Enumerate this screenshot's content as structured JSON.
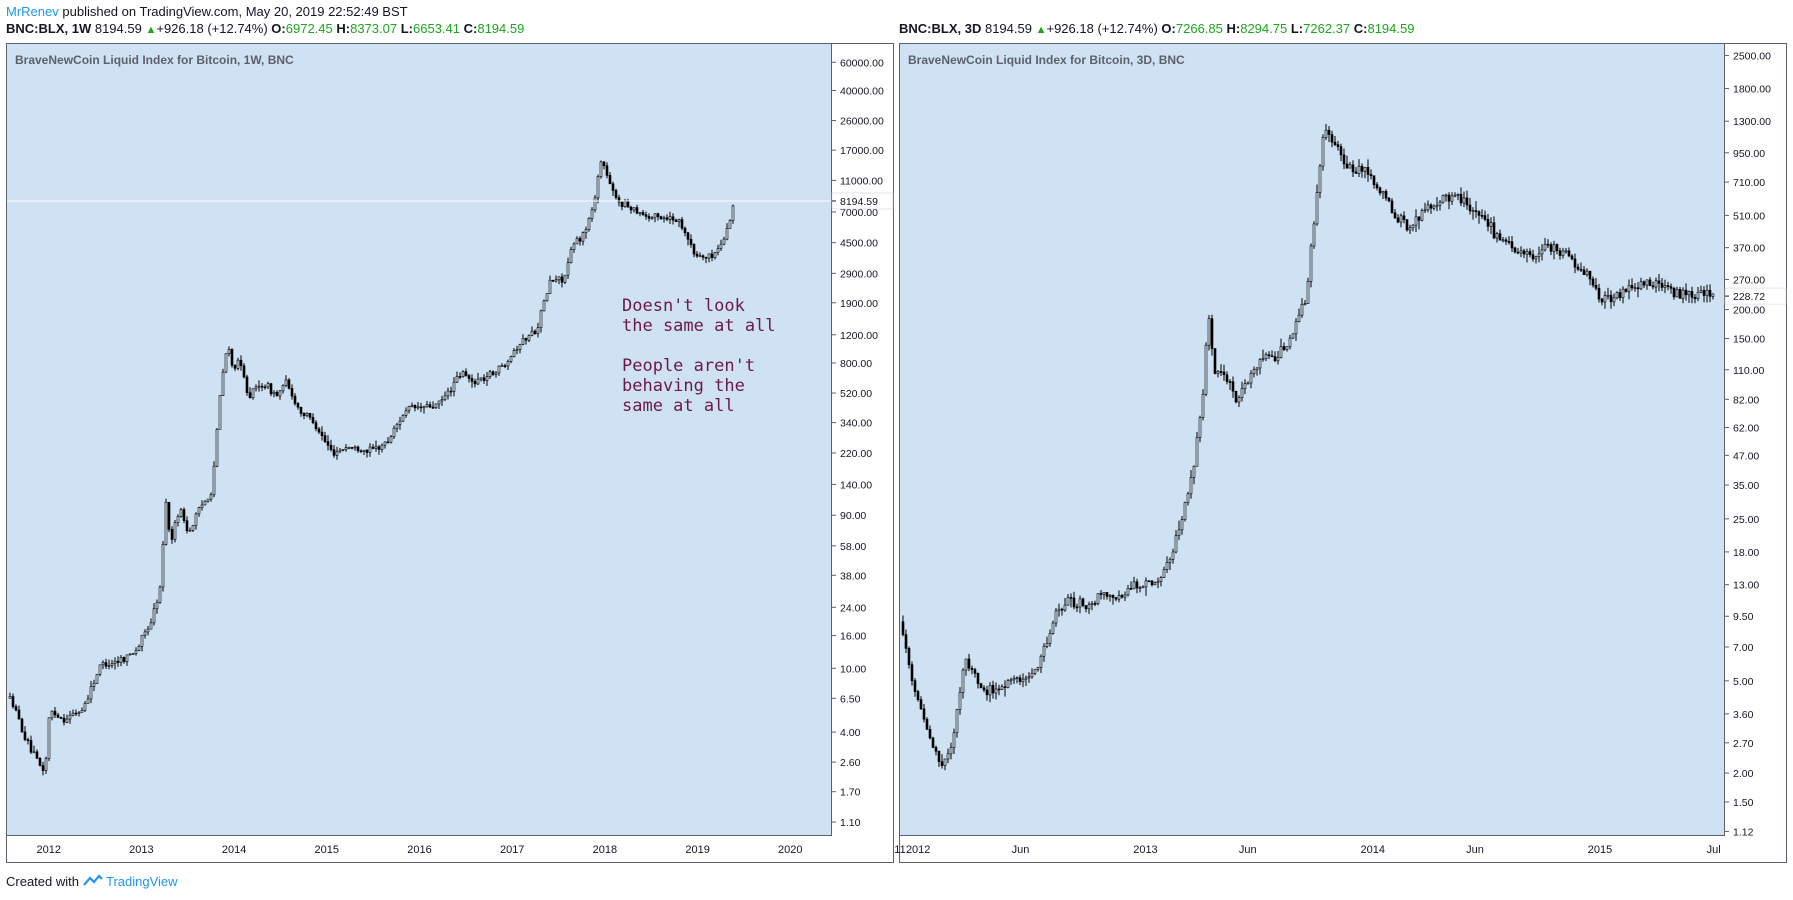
{
  "header": {
    "author": "MrRenev",
    "published": "published on TradingView.com, May 20, 2019 22:52:49 BST"
  },
  "colors": {
    "plot_bg": "#cfe2f3",
    "candle": "#000000",
    "up": "#1ea51e",
    "brand": "#2196f3",
    "annotation": "#6b1947"
  },
  "left": {
    "ohlc": {
      "symbol": "BNC:BLX, 1W",
      "last": "8194.59",
      "change": "+926.18 (+12.74%)",
      "o_label": "O:",
      "o": "6972.45",
      "h_label": "H:",
      "h": "8373.07",
      "l_label": "L:",
      "l": "6653.41",
      "c_label": "C:",
      "c": "8194.59"
    },
    "title": "BraveNewCoin Liquid Index for Bitcoin, 1W, BNC",
    "price_tag": "8194.59",
    "annotation": "Doesn't look\nthe same at all\n\nPeople aren't\nbehaving the\nsame at all"
  },
  "right": {
    "ohlc": {
      "symbol": "BNC:BLX, 3D",
      "last": "8194.59",
      "change": "+926.18 (+12.74%)",
      "o_label": "O:",
      "o": "7266.85",
      "h_label": "H:",
      "h": "8294.75",
      "l_label": "L:",
      "l": "7262.37",
      "c_label": "C:",
      "c": "8194.59"
    },
    "title": "BraveNewCoin Liquid Index for Bitcoin, 3D, BNC",
    "price_tag": "228.72"
  },
  "footer": {
    "created_with": "Created with",
    "brand": "TradingView"
  },
  "chart_data": [
    {
      "type": "line",
      "title": "BraveNewCoin Liquid Index for Bitcoin, 1W, BNC",
      "scale": "log",
      "yticks": [
        "60000.00",
        "40000.00",
        "26000.00",
        "17000.00",
        "11000.00",
        "7000.00",
        "4500.00",
        "2900.00",
        "1900.00",
        "1200.00",
        "800.00",
        "520.00",
        "340.00",
        "220.00",
        "140.00",
        "90.00",
        "58.00",
        "38.00",
        "24.00",
        "16.00",
        "10.00",
        "6.50",
        "4.00",
        "2.60",
        "1.70",
        "1.10"
      ],
      "xticks": [
        "2012",
        "2013",
        "2014",
        "2015",
        "2016",
        "2017",
        "2018",
        "2019",
        "2020"
      ],
      "xrange": [
        2011.55,
        2020.45
      ],
      "ylim": [
        0.9,
        78000
      ],
      "last_value": 8194.59,
      "series": [
        {
          "x": [
            2011.58,
            2011.75,
            2011.88,
            2011.95,
            2012.0,
            2012.15,
            2012.35,
            2012.55,
            2012.7,
            2012.85,
            2012.95,
            2013.1,
            2013.2,
            2013.25,
            2013.3,
            2013.4,
            2013.5,
            2013.6,
            2013.75,
            2013.85,
            2013.92,
            2013.97,
            2014.05,
            2014.15,
            2014.3,
            2014.45,
            2014.55,
            2014.7,
            2014.85,
            2014.95,
            2015.05,
            2015.2,
            2015.4,
            2015.5,
            2015.65,
            2015.8,
            2015.9,
            2016.0,
            2016.2,
            2016.45,
            2016.55,
            2016.7,
            2016.9,
            2017.0,
            2017.1,
            2017.25,
            2017.4,
            2017.55,
            2017.65,
            2017.75,
            2017.85,
            2017.95,
            2018.0,
            2018.05,
            2018.1,
            2018.2,
            2018.35,
            2018.45,
            2018.6,
            2018.75,
            2018.85,
            2018.95,
            2019.1,
            2019.2,
            2019.3,
            2019.38
          ],
          "y": [
            6.5,
            3.5,
            2.5,
            2.3,
            5.5,
            4.8,
            5.5,
            10.5,
            11,
            12,
            13.5,
            20,
            33,
            120,
            60,
            100,
            70,
            95,
            130,
            600,
            1050,
            750,
            800,
            500,
            600,
            500,
            600,
            400,
            350,
            270,
            220,
            240,
            230,
            230,
            260,
            380,
            420,
            420,
            440,
            700,
            610,
            650,
            780,
            960,
            1100,
            1300,
            2600,
            2700,
            4400,
            5000,
            7000,
            15000,
            12500,
            10000,
            8500,
            7800,
            7200,
            6500,
            6500,
            6400,
            5500,
            3800,
            3600,
            4000,
            5200,
            8194.59
          ]
        }
      ]
    },
    {
      "type": "line",
      "title": "BraveNewCoin Liquid Index for Bitcoin, 3D, BNC",
      "scale": "log",
      "yticks": [
        "2500.00",
        "1800.00",
        "1300.00",
        "950.00",
        "710.00",
        "510.00",
        "370.00",
        "270.00",
        "200.00",
        "150.00",
        "110.00",
        "82.00",
        "62.00",
        "47.00",
        "35.00",
        "25.00",
        "18.00",
        "13.00",
        "9.50",
        "7.00",
        "5.00",
        "3.60",
        "2.70",
        "2.00",
        "1.50",
        "1.12"
      ],
      "xticks": [
        "11",
        "2012",
        "Jun",
        "2013",
        "Jun",
        "2014",
        "Jun",
        "2015",
        "Jul"
      ],
      "xrange": [
        2011.92,
        2015.55
      ],
      "ylim": [
        1.07,
        2800
      ],
      "last_value": 228.72,
      "series": [
        {
          "x": [
            2011.92,
            2011.98,
            2012.05,
            2012.1,
            2012.15,
            2012.2,
            2012.25,
            2012.3,
            2012.4,
            2012.5,
            2012.55,
            2012.6,
            2012.65,
            2012.75,
            2012.8,
            2012.9,
            2012.95,
            2013.05,
            2013.1,
            2013.15,
            2013.2,
            2013.25,
            2013.27,
            2013.3,
            2013.35,
            2013.4,
            2013.45,
            2013.5,
            2013.55,
            2013.62,
            2013.7,
            2013.78,
            2013.85,
            2013.88,
            2013.92,
            2013.95,
            2014.0,
            2014.05,
            2014.1,
            2014.15,
            2014.2,
            2014.25,
            2014.3,
            2014.35,
            2014.4,
            2014.45,
            2014.5,
            2014.55,
            2014.6,
            2014.65,
            2014.7,
            2014.75,
            2014.8,
            2014.85,
            2014.9,
            2014.95,
            2015.0,
            2015.05,
            2015.1,
            2015.15,
            2015.2,
            2015.25,
            2015.3,
            2015.35,
            2015.4,
            2015.45,
            2015.5
          ],
          "y": [
            9,
            4.5,
            2.8,
            2.1,
            2.7,
            6.5,
            5,
            4.5,
            5,
            5.2,
            7,
            9.5,
            11,
            10.5,
            12,
            11.5,
            13,
            13.5,
            17,
            24,
            38,
            90,
            200,
            110,
            100,
            80,
            100,
            125,
            120,
            140,
            220,
            1200,
            1000,
            850,
            800,
            800,
            700,
            600,
            500,
            450,
            500,
            560,
            600,
            620,
            580,
            520,
            480,
            400,
            380,
            350,
            330,
            380,
            360,
            350,
            300,
            280,
            220,
            230,
            235,
            250,
            260,
            260,
            240,
            235,
            232,
            228,
            228.72
          ]
        }
      ]
    }
  ]
}
